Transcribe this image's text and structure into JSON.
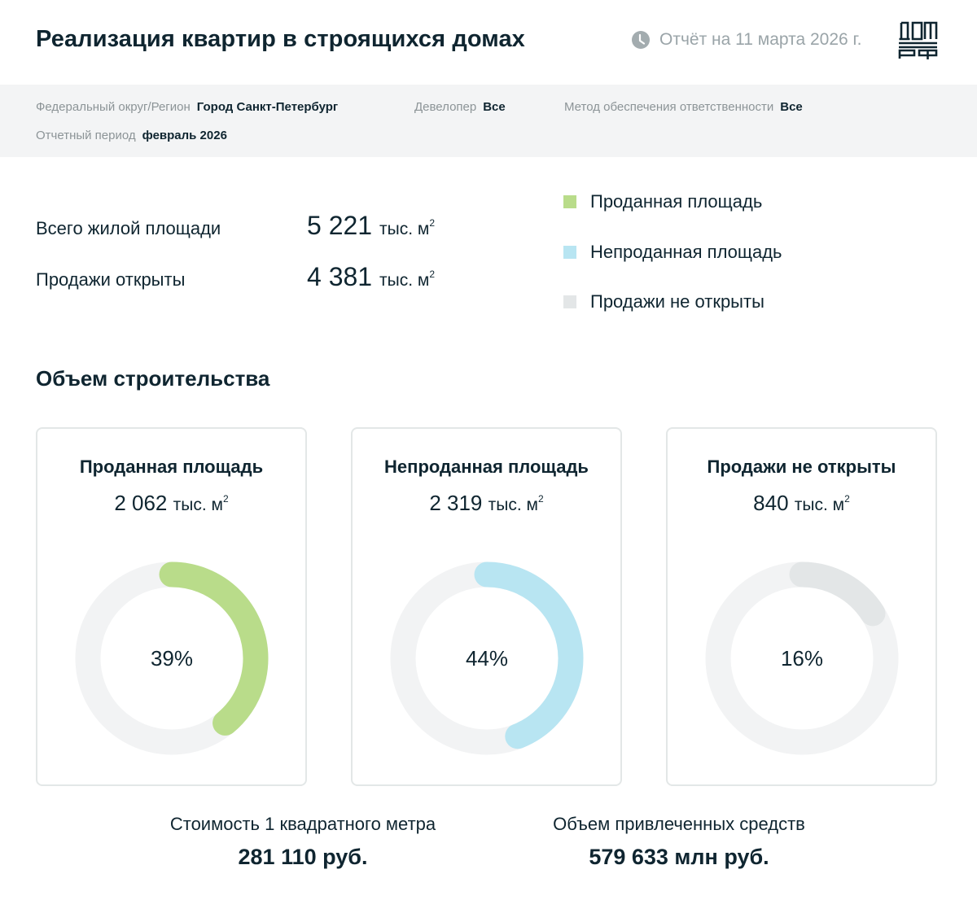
{
  "header": {
    "title": "Реализация квартир в строящихся домах",
    "report_date": "Отчёт на 11 марта 2026 г.",
    "clock_icon": "clock-icon",
    "logo_icon": "dom-rf-logo-icon"
  },
  "filters": {
    "region": {
      "label": "Федеральный округ/Регион",
      "value": "Город Санкт-Петербург"
    },
    "developer": {
      "label": "Девелопер",
      "value": "Все"
    },
    "method": {
      "label": "Метод обеспечения ответственности",
      "value": "Все"
    },
    "period": {
      "label": "Отчетный период",
      "value": "февраль 2026"
    }
  },
  "summary": {
    "total": {
      "label": "Всего жилой площади",
      "value": "5 221",
      "unit": "тыс. м",
      "sup": "2"
    },
    "open": {
      "label": "Продажи открыты",
      "value": "4 381",
      "unit": "тыс. м",
      "sup": "2"
    }
  },
  "legend": [
    {
      "label": "Проданная площадь",
      "color": "#b9dc8a"
    },
    {
      "label": "Непроданная площадь",
      "color": "#b8e5f2"
    },
    {
      "label": "Продажи не открыты",
      "color": "#e3e6e7"
    }
  ],
  "section_title": "Объем строительства",
  "cards": [
    {
      "title": "Проданная площадь",
      "value": "2 062",
      "unit": "тыс. м",
      "sup": "2",
      "percent_label": "39%",
      "percent": 39,
      "color": "#b9dc8a"
    },
    {
      "title": "Непроданная площадь",
      "value": "2 319",
      "unit": "тыс. м",
      "sup": "2",
      "percent_label": "44%",
      "percent": 44,
      "color": "#b8e5f2"
    },
    {
      "title": "Продажи не открыты",
      "value": "840",
      "unit": "тыс. м",
      "sup": "2",
      "percent_label": "16%",
      "percent": 16,
      "color": "#e3e6e7"
    }
  ],
  "stats": {
    "price": {
      "label": "Стоимость 1 квадратного метра",
      "value": "281 110 руб."
    },
    "funds": {
      "label": "Объем привлеченных средств",
      "value": "579 633 млн руб."
    }
  },
  "colors": {
    "track": "#f2f3f4",
    "text": "#0f2530",
    "muted": "#8c9497",
    "filter_bg": "#f3f4f5"
  },
  "chart_data": {
    "type": "pie",
    "title": "Объем строительства",
    "unit": "тыс. м²",
    "categories": [
      "Проданная площадь",
      "Непроданная площадь",
      "Продажи не открыты"
    ],
    "values": [
      2062,
      2319,
      840
    ],
    "percentages": [
      39,
      44,
      16
    ],
    "total": 5221,
    "legend_position": "top-right"
  }
}
